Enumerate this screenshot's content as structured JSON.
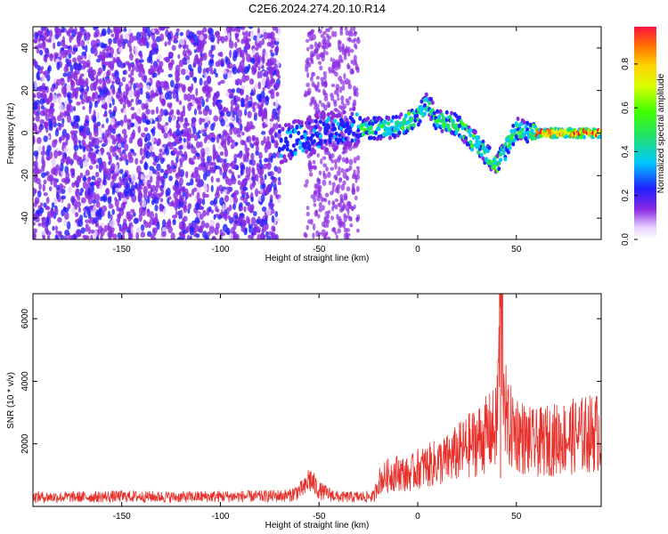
{
  "title": "C2E6.2024.274.20.10.R14",
  "colors": {
    "snr_line": "#e8302a",
    "spectrogram_scatter": "#8a2be2"
  },
  "chart_data": [
    {
      "type": "heatmap",
      "name": "spectrogram",
      "xlabel": "Height of straight line (km)",
      "ylabel": "Frequency (Hz)",
      "xlim": [
        -195,
        93
      ],
      "ylim": [
        -50,
        50
      ],
      "xticks": [
        -150,
        -100,
        -50,
        0,
        50
      ],
      "yticks": [
        -40,
        -20,
        0,
        20,
        40
      ],
      "colorbar": {
        "label": "Normalized spectral amplitude",
        "range": [
          0.0,
          0.97
        ],
        "ticks": [
          0.0,
          0.2,
          0.4,
          0.6,
          0.8
        ],
        "colormap": "rainbow (white-purple-blue-cyan-green-yellow-orange-red)"
      },
      "ridge": {
        "x": [
          -70,
          -60,
          -50,
          -40,
          -30,
          -20,
          -10,
          0,
          5,
          10,
          20,
          30,
          35,
          40,
          50,
          60,
          70,
          80,
          93
        ],
        "y": [
          -5,
          -3,
          0,
          1,
          3,
          2,
          3,
          8,
          14,
          6,
          4,
          -5,
          -10,
          -15,
          2,
          0,
          0,
          0,
          0
        ]
      }
    },
    {
      "type": "line",
      "name": "snr",
      "xlabel": "Height of straight line (km)",
      "ylabel": "SNR (10 * v/v)",
      "xlim": [
        -195,
        93
      ],
      "ylim": [
        0,
        6800
      ],
      "xticks": [
        -150,
        -100,
        -50,
        0,
        50
      ],
      "yticks": [
        2000,
        4000,
        6000
      ],
      "series": [
        {
          "x": [
            -195,
            -170,
            -150,
            -120,
            -100,
            -80,
            -65,
            -57,
            -55,
            -50,
            -45,
            -40,
            -30,
            -22,
            -20,
            -15,
            -10,
            -5,
            0,
            5,
            10,
            15,
            20,
            25,
            30,
            35,
            40,
            42,
            45,
            50,
            55,
            60,
            65,
            70,
            75,
            80,
            85,
            93
          ],
          "y": [
            300,
            300,
            320,
            300,
            320,
            320,
            350,
            600,
            900,
            500,
            400,
            300,
            300,
            320,
            800,
            1000,
            1100,
            1000,
            1200,
            1300,
            1400,
            1500,
            1700,
            1900,
            2100,
            2300,
            2500,
            6800,
            2600,
            2400,
            2100,
            2000,
            2100,
            2150,
            2200,
            2250,
            2300,
            2400
          ]
        }
      ]
    }
  ]
}
